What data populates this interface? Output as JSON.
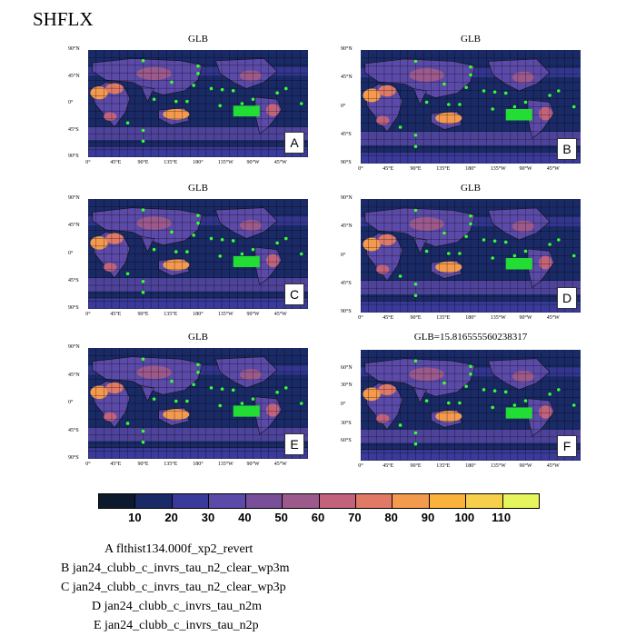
{
  "title": "SHFLX",
  "panels": [
    {
      "id": "A",
      "title": "GLB",
      "lat_labels": [
        "90°N",
        "45°N",
        "0°",
        "45°S",
        "90°S"
      ]
    },
    {
      "id": "B",
      "title": "GLB",
      "lat_labels": [
        "90°N",
        "45°N",
        "0°",
        "45°S",
        "90°S"
      ]
    },
    {
      "id": "C",
      "title": "GLB",
      "lat_labels": [
        "90°N",
        "45°N",
        "0°",
        "45°S",
        "90°S"
      ]
    },
    {
      "id": "D",
      "title": "GLB",
      "lat_labels": [
        "90°N",
        "45°N",
        "0°",
        "45°S",
        "90°S"
      ]
    },
    {
      "id": "E",
      "title": "GLB",
      "lat_labels": [
        "90°N",
        "45°N",
        "0°",
        "45°S",
        "90°S"
      ]
    },
    {
      "id": "F",
      "title": "GLB=15.816555560238317",
      "lat_labels": [
        "60°N",
        "30°N",
        "0°",
        "30°S",
        "60°S"
      ]
    }
  ],
  "lon_labels": [
    "0°",
    "45°E",
    "90°E",
    "135°E",
    "180°",
    "135°W",
    "90°W",
    "45°W"
  ],
  "chart_data": {
    "type": "heatmap",
    "variable": "SHFLX",
    "colorbar": {
      "levels": [
        10,
        20,
        30,
        40,
        50,
        60,
        70,
        80,
        90,
        100,
        110
      ],
      "colors": [
        "#0d1a2e",
        "#1a2a66",
        "#3a3a9a",
        "#5b4aa8",
        "#7a4f9a",
        "#9c5a8c",
        "#c2637c",
        "#e07a66",
        "#f49a4e",
        "#fbb23c",
        "#f6d04a",
        "#e6f55c"
      ]
    },
    "panels": [
      {
        "id": "A",
        "title": "GLB"
      },
      {
        "id": "B",
        "title": "GLB"
      },
      {
        "id": "C",
        "title": "GLB"
      },
      {
        "id": "D",
        "title": "GLB"
      },
      {
        "id": "E",
        "title": "GLB"
      },
      {
        "id": "F",
        "title": "GLB=15.816555560238317"
      }
    ]
  },
  "legend": [
    "A  flthist134.000f_xp2_revert",
    "B  jan24_clubb_c_invrs_tau_n2_clear_wp3m",
    "C  jan24_clubb_c_invrs_tau_n2_clear_wp3p",
    "D  jan24_clubb_c_invrs_tau_n2m",
    "E  jan24_clubb_c_invrs_tau_n2p"
  ]
}
